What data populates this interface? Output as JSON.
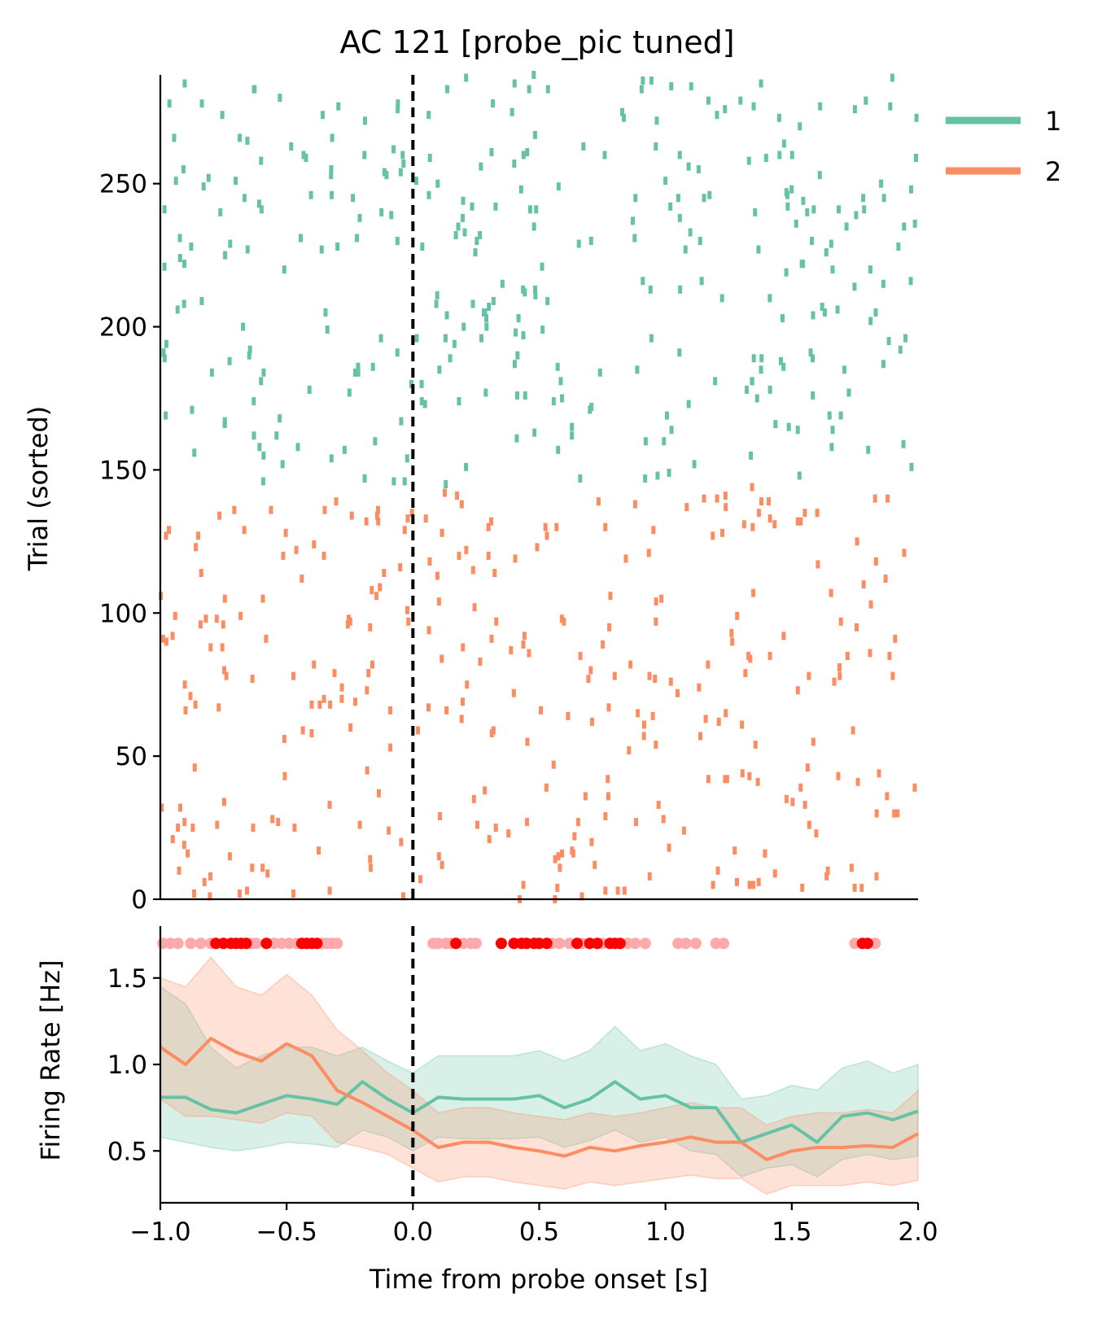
{
  "chart_data": [
    {
      "type": "raster",
      "title": "AC 121 [probe_pic tuned]",
      "xlabel": "",
      "ylabel": "Trial (sorted)",
      "xlim": [
        -1.0,
        2.0
      ],
      "ylim": [
        0,
        288
      ],
      "yticks": [
        0,
        50,
        100,
        150,
        200,
        250
      ],
      "ytick_labels": [
        "0",
        "50",
        "100",
        "150",
        "200",
        "250"
      ],
      "onset_line": {
        "x": 0.0,
        "style": "dashed",
        "color": "#000000"
      },
      "legend": {
        "placement": "upper right outside",
        "entries": [
          "1",
          "2"
        ]
      },
      "series": [
        {
          "name": "1",
          "color": "#66c2a5",
          "trial_range": [
            145,
            288
          ],
          "approx_spike_count": 330
        },
        {
          "name": "2",
          "color": "#fc8d62",
          "trial_range": [
            0,
            144
          ],
          "approx_spike_count": 330
        }
      ]
    },
    {
      "type": "line",
      "xlabel": "Time from probe onset [s]",
      "ylabel": "Firing Rate [Hz]",
      "xlim": [
        -1.0,
        2.0
      ],
      "ylim": [
        0.2,
        1.8
      ],
      "xticks": [
        -1.0,
        -0.5,
        0.0,
        0.5,
        1.0,
        1.5,
        2.0
      ],
      "xtick_labels": [
        "−1.0",
        "−0.5",
        "0.0",
        "0.5",
        "1.0",
        "1.5",
        "2.0"
      ],
      "yticks": [
        0.5,
        1.0,
        1.5
      ],
      "ytick_labels": [
        "0.5",
        "1.0",
        "1.5"
      ],
      "onset_line": {
        "x": 0.0,
        "style": "dashed",
        "color": "#000000"
      },
      "x": [
        -1.0,
        -0.9,
        -0.8,
        -0.7,
        -0.6,
        -0.5,
        -0.4,
        -0.3,
        -0.2,
        -0.1,
        0.0,
        0.1,
        0.2,
        0.3,
        0.4,
        0.5,
        0.6,
        0.7,
        0.8,
        0.9,
        1.0,
        1.1,
        1.2,
        1.3,
        1.4,
        1.5,
        1.6,
        1.7,
        1.8,
        1.9,
        2.0
      ],
      "series": [
        {
          "name": "1",
          "color": "#66c2a5",
          "values": [
            0.81,
            0.81,
            0.74,
            0.72,
            0.77,
            0.82,
            0.8,
            0.77,
            0.9,
            0.8,
            0.72,
            0.81,
            0.8,
            0.8,
            0.8,
            0.82,
            0.75,
            0.8,
            0.9,
            0.8,
            0.82,
            0.75,
            0.75,
            0.55,
            0.6,
            0.65,
            0.55,
            0.7,
            0.72,
            0.68,
            0.73
          ],
          "ci_upper": [
            1.45,
            1.35,
            1.1,
            0.98,
            1.05,
            1.1,
            1.1,
            1.05,
            1.1,
            1.02,
            0.95,
            1.05,
            1.05,
            1.05,
            1.05,
            1.08,
            1.02,
            1.08,
            1.22,
            1.08,
            1.12,
            1.05,
            1.0,
            0.8,
            0.82,
            0.88,
            0.85,
            0.98,
            1.02,
            0.95,
            1.0
          ],
          "ci_lower": [
            0.58,
            0.55,
            0.52,
            0.5,
            0.52,
            0.55,
            0.54,
            0.52,
            0.62,
            0.58,
            0.5,
            0.58,
            0.57,
            0.57,
            0.57,
            0.58,
            0.52,
            0.56,
            0.62,
            0.55,
            0.58,
            0.5,
            0.48,
            0.35,
            0.4,
            0.42,
            0.35,
            0.45,
            0.48,
            0.45,
            0.47
          ]
        },
        {
          "name": "2",
          "color": "#fc8d62",
          "values": [
            1.1,
            1.0,
            1.15,
            1.07,
            1.02,
            1.12,
            1.05,
            0.85,
            0.78,
            0.7,
            0.62,
            0.52,
            0.55,
            0.55,
            0.52,
            0.5,
            0.47,
            0.52,
            0.5,
            0.53,
            0.55,
            0.58,
            0.55,
            0.55,
            0.45,
            0.5,
            0.52,
            0.52,
            0.53,
            0.52,
            0.6
          ],
          "ci_upper": [
            1.5,
            1.45,
            1.62,
            1.45,
            1.4,
            1.52,
            1.4,
            1.2,
            1.08,
            0.95,
            0.85,
            0.72,
            0.75,
            0.75,
            0.72,
            0.7,
            0.68,
            0.72,
            0.7,
            0.72,
            0.75,
            0.78,
            0.75,
            0.75,
            0.65,
            0.7,
            0.72,
            0.72,
            0.74,
            0.72,
            0.85
          ],
          "ci_lower": [
            0.8,
            0.7,
            0.7,
            0.68,
            0.66,
            0.72,
            0.7,
            0.55,
            0.52,
            0.48,
            0.4,
            0.32,
            0.35,
            0.35,
            0.32,
            0.3,
            0.28,
            0.32,
            0.3,
            0.32,
            0.34,
            0.36,
            0.34,
            0.34,
            0.25,
            0.3,
            0.3,
            0.3,
            0.32,
            0.3,
            0.33
          ]
        }
      ],
      "significance_markers": {
        "y_level": 1.7,
        "strong_color": "#ff0000",
        "weak_color": "#ffaaaa",
        "strong_x": [
          -0.78,
          -0.75,
          -0.72,
          -0.7,
          -0.68,
          -0.66,
          -0.58,
          -0.44,
          -0.42,
          -0.4,
          -0.38,
          0.17,
          0.35,
          0.4,
          0.43,
          0.45,
          0.48,
          0.5,
          0.53,
          0.65,
          0.7,
          0.73,
          0.78,
          0.8,
          0.82,
          1.78,
          1.8
        ],
        "weak_x": [
          -0.99,
          -0.96,
          -0.93,
          -0.88,
          -0.84,
          -0.8,
          -0.64,
          -0.62,
          -0.55,
          -0.52,
          -0.49,
          -0.46,
          -0.36,
          -0.34,
          -0.32,
          -0.3,
          0.08,
          0.1,
          0.13,
          0.15,
          0.2,
          0.23,
          0.25,
          0.55,
          0.58,
          0.62,
          0.67,
          0.75,
          0.85,
          0.88,
          0.92,
          1.05,
          1.08,
          1.12,
          1.2,
          1.23,
          1.75,
          1.83
        ]
      }
    }
  ]
}
